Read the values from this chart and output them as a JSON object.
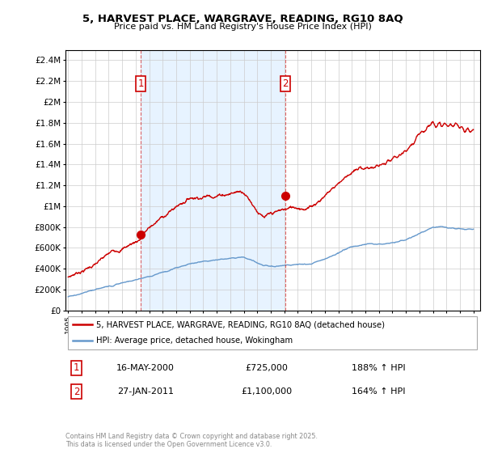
{
  "title1": "5, HARVEST PLACE, WARGRAVE, READING, RG10 8AQ",
  "title2": "Price paid vs. HM Land Registry's House Price Index (HPI)",
  "legend1": "5, HARVEST PLACE, WARGRAVE, READING, RG10 8AQ (detached house)",
  "legend2": "HPI: Average price, detached house, Wokingham",
  "sale1_date_label": "16-MAY-2000",
  "sale1_price_label": "£725,000",
  "sale1_hpi_label": "188% ↑ HPI",
  "sale2_date_label": "27-JAN-2011",
  "sale2_price_label": "£1,100,000",
  "sale2_hpi_label": "164% ↑ HPI",
  "sale1_year": 2000.37,
  "sale1_price": 725000,
  "sale2_year": 2011.07,
  "sale2_price": 1100000,
  "property_color": "#cc0000",
  "hpi_color": "#6699cc",
  "shade_color": "#ddeeff",
  "background_color": "#ffffff",
  "grid_color": "#cccccc",
  "ylim": [
    0,
    2500000
  ],
  "xlim": [
    1994.8,
    2025.5
  ],
  "yticks": [
    0,
    200000,
    400000,
    600000,
    800000,
    1000000,
    1200000,
    1400000,
    1600000,
    1800000,
    2000000,
    2200000,
    2400000
  ],
  "ytick_labels": [
    "£0",
    "£200K",
    "£400K",
    "£600K",
    "£800K",
    "£1M",
    "£1.2M",
    "£1.4M",
    "£1.6M",
    "£1.8M",
    "£2M",
    "£2.2M",
    "£2.4M"
  ],
  "xticks": [
    1995,
    1996,
    1997,
    1998,
    1999,
    2000,
    2001,
    2002,
    2003,
    2004,
    2005,
    2006,
    2007,
    2008,
    2009,
    2010,
    2011,
    2012,
    2013,
    2014,
    2015,
    2016,
    2017,
    2018,
    2019,
    2020,
    2021,
    2022,
    2023,
    2024,
    2025
  ],
  "copyright_text": "Contains HM Land Registry data © Crown copyright and database right 2025.\nThis data is licensed under the Open Government Licence v3.0."
}
